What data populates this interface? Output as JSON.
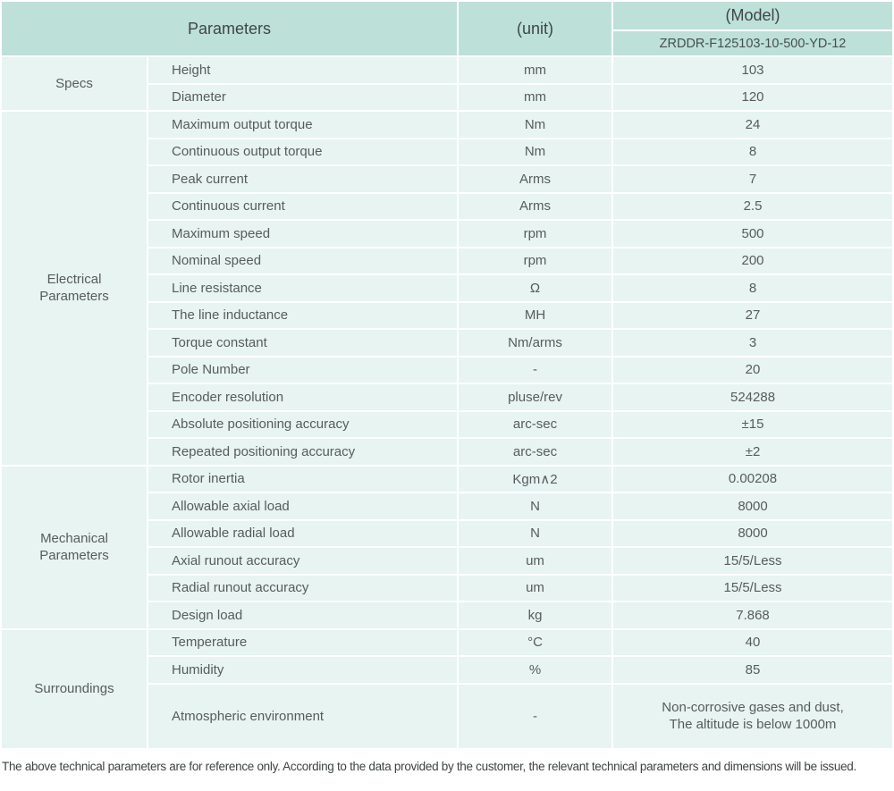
{
  "header": {
    "parameters_label": "Parameters",
    "unit_label": "(unit)",
    "model_label": "(Model)",
    "model_value": "ZRDDR-F125103-10-500-YD-12"
  },
  "groups": [
    {
      "name": "Specs",
      "rows": [
        {
          "parameter": "Height",
          "unit": "mm",
          "value": "103"
        },
        {
          "parameter": "Diameter",
          "unit": "mm",
          "value": "120"
        }
      ]
    },
    {
      "name": "Electrical\nParameters",
      "rows": [
        {
          "parameter": "Maximum output torque",
          "unit": "Nm",
          "value": "24"
        },
        {
          "parameter": "Continuous output torque",
          "unit": "Nm",
          "value": "8"
        },
        {
          "parameter": "Peak current",
          "unit": "Arms",
          "value": "7"
        },
        {
          "parameter": "Continuous current",
          "unit": "Arms",
          "value": "2.5"
        },
        {
          "parameter": "Maximum speed",
          "unit": "rpm",
          "value": "500"
        },
        {
          "parameter": "Nominal speed",
          "unit": "rpm",
          "value": "200"
        },
        {
          "parameter": "Line resistance",
          "unit": "Ω",
          "value": "8"
        },
        {
          "parameter": "The line inductance",
          "unit": "MH",
          "value": "27"
        },
        {
          "parameter": "Torque constant",
          "unit": "Nm/arms",
          "value": "3"
        },
        {
          "parameter": "Pole Number",
          "unit": "-",
          "value": "20"
        },
        {
          "parameter": "Encoder resolution",
          "unit": "pluse/rev",
          "value": "524288"
        },
        {
          "parameter": "Absolute positioning accuracy",
          "unit": "arc-sec",
          "value": "±15"
        },
        {
          "parameter": "Repeated positioning accuracy",
          "unit": "arc-sec",
          "value": "±2"
        }
      ]
    },
    {
      "name": "Mechanical\nParameters",
      "rows": [
        {
          "parameter": "Rotor inertia",
          "unit": "Kgm∧2",
          "value": "0.00208"
        },
        {
          "parameter": "Allowable axial load",
          "unit": "N",
          "value": "8000"
        },
        {
          "parameter": "Allowable radial load",
          "unit": "N",
          "value": "8000"
        },
        {
          "parameter": "Axial runout accuracy",
          "unit": "um",
          "value": "15/5/Less"
        },
        {
          "parameter": "Radial runout accuracy",
          "unit": "um",
          "value": "15/5/Less"
        },
        {
          "parameter": "Design load",
          "unit": "kg",
          "value": "7.868"
        }
      ]
    },
    {
      "name": "Surroundings",
      "rows": [
        {
          "parameter": "Temperature",
          "unit": "°C",
          "value": "40"
        },
        {
          "parameter": "Humidity",
          "unit": "%",
          "value": "85"
        },
        {
          "parameter": "Atmospheric environment",
          "unit": "-",
          "value": [
            "Non-corrosive gases and dust,",
            "The altitude is below 1000m"
          ]
        }
      ]
    }
  ],
  "footer": {
    "note": "The above technical parameters are for reference only. According to the data provided by the customer, the relevant technical parameters and dimensions will be issued."
  },
  "colors": {
    "header_bg": "#bde0d8",
    "row_bg": "#e7f4f1",
    "divider": "#ffffff",
    "text": "#575c5b"
  }
}
